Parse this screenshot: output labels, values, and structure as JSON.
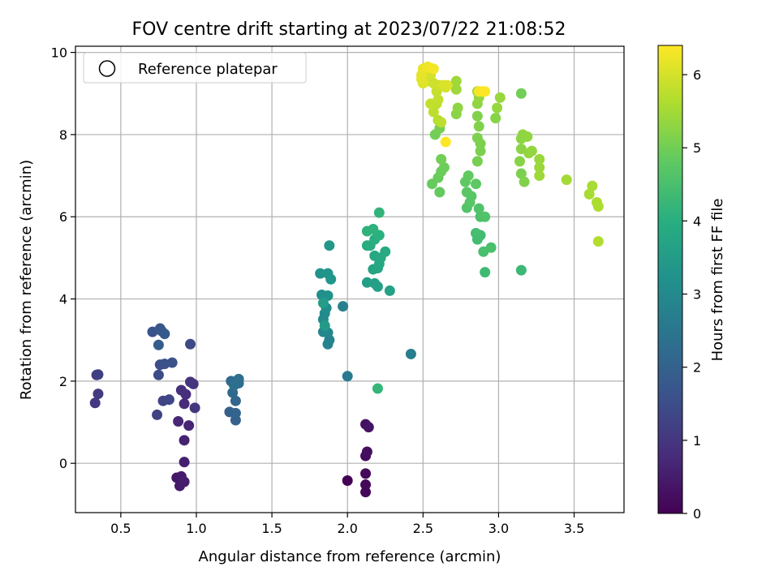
{
  "chart_data": {
    "type": "scatter",
    "title": "FOV centre drift starting at 2023/07/22 21:08:52",
    "xlabel": "Angular distance from reference (arcmin)",
    "ylabel": "Rotation from reference (arcmin)",
    "xlim": [
      0.2,
      3.83
    ],
    "ylim": [
      -1.2,
      10.15
    ],
    "xticks": [
      "0.5",
      "1.0",
      "1.5",
      "2.0",
      "2.5",
      "3.0",
      "3.5"
    ],
    "yticks": [
      "0",
      "2",
      "4",
      "6",
      "8",
      "10"
    ],
    "grid": true,
    "legend": {
      "placement": "top-left",
      "entries": [
        "Reference platepar"
      ]
    },
    "colorbar": {
      "label": "Hours from first FF file",
      "range": [
        0,
        6.4
      ],
      "ticks": [
        "0",
        "1",
        "2",
        "3",
        "4",
        "5",
        "6"
      ],
      "colormap": "viridis"
    },
    "points": [
      [
        2.0,
        -0.42,
        0.0
      ],
      [
        2.12,
        -0.7,
        0.1
      ],
      [
        2.12,
        -0.52,
        0.12
      ],
      [
        2.12,
        -0.25,
        0.15
      ],
      [
        2.12,
        0.18,
        0.2
      ],
      [
        2.13,
        0.28,
        0.25
      ],
      [
        2.12,
        0.95,
        0.3
      ],
      [
        2.14,
        0.88,
        0.35
      ],
      [
        0.87,
        -0.35,
        0.4
      ],
      [
        0.89,
        -0.55,
        0.45
      ],
      [
        0.9,
        -0.32,
        0.45
      ],
      [
        0.92,
        -0.45,
        0.5
      ],
      [
        0.92,
        0.03,
        0.55
      ],
      [
        0.92,
        0.56,
        0.6
      ],
      [
        0.95,
        0.92,
        0.65
      ],
      [
        0.88,
        1.02,
        0.7
      ],
      [
        0.92,
        1.45,
        0.75
      ],
      [
        0.93,
        1.68,
        0.8
      ],
      [
        0.9,
        1.78,
        0.85
      ],
      [
        0.96,
        1.98,
        0.9
      ],
      [
        0.98,
        1.93,
        0.95
      ],
      [
        0.99,
        1.35,
        1.0
      ],
      [
        0.33,
        1.47,
        1.05
      ],
      [
        0.35,
        1.69,
        1.1
      ],
      [
        0.34,
        2.15,
        1.15
      ],
      [
        0.35,
        2.16,
        1.2
      ],
      [
        0.74,
        1.18,
        1.25
      ],
      [
        0.78,
        1.52,
        1.3
      ],
      [
        0.82,
        1.55,
        1.35
      ],
      [
        0.96,
        2.9,
        1.4
      ],
      [
        0.75,
        2.15,
        1.45
      ],
      [
        0.76,
        2.4,
        1.5
      ],
      [
        0.79,
        2.42,
        1.55
      ],
      [
        0.84,
        2.45,
        1.6
      ],
      [
        0.71,
        3.2,
        1.65
      ],
      [
        0.76,
        3.28,
        1.7
      ],
      [
        0.77,
        3.22,
        1.75
      ],
      [
        0.79,
        3.15,
        1.8
      ],
      [
        0.75,
        2.88,
        1.85
      ],
      [
        1.22,
        1.25,
        1.95
      ],
      [
        1.26,
        1.05,
        2.0
      ],
      [
        1.26,
        1.22,
        2.05
      ],
      [
        1.26,
        1.52,
        2.1
      ],
      [
        1.24,
        1.72,
        2.15
      ],
      [
        1.23,
        2.0,
        2.2
      ],
      [
        1.28,
        1.95,
        2.25
      ],
      [
        1.28,
        2.05,
        2.3
      ],
      [
        1.25,
        1.9,
        2.35
      ],
      [
        2.0,
        2.12,
        2.6
      ],
      [
        2.42,
        2.66,
        2.7
      ],
      [
        1.97,
        3.82,
        2.75
      ],
      [
        1.87,
        2.9,
        2.8
      ],
      [
        1.88,
        3.0,
        2.85
      ],
      [
        1.84,
        3.2,
        2.9
      ],
      [
        1.87,
        3.18,
        2.95
      ],
      [
        1.84,
        3.5,
        3.0
      ],
      [
        1.85,
        3.65,
        3.05
      ],
      [
        1.86,
        3.78,
        3.1
      ],
      [
        1.83,
        4.1,
        3.15
      ],
      [
        1.87,
        4.08,
        3.2
      ],
      [
        1.82,
        4.62,
        3.25
      ],
      [
        1.87,
        4.62,
        3.3
      ],
      [
        1.89,
        4.48,
        3.35
      ],
      [
        1.88,
        5.3,
        3.4
      ],
      [
        1.85,
        3.35,
        3.45
      ],
      [
        1.84,
        3.9,
        3.5
      ],
      [
        2.13,
        4.4,
        3.55
      ],
      [
        2.18,
        4.38,
        3.6
      ],
      [
        2.2,
        4.3,
        3.62
      ],
      [
        2.28,
        4.2,
        3.65
      ],
      [
        2.17,
        4.72,
        3.7
      ],
      [
        2.2,
        4.75,
        3.75
      ],
      [
        2.21,
        4.85,
        3.8
      ],
      [
        2.18,
        5.05,
        3.82
      ],
      [
        2.22,
        5.0,
        3.85
      ],
      [
        2.25,
        5.15,
        3.9
      ],
      [
        2.13,
        5.3,
        3.92
      ],
      [
        2.15,
        5.3,
        3.95
      ],
      [
        2.18,
        5.45,
        4.0
      ],
      [
        2.21,
        5.55,
        4.05
      ],
      [
        2.17,
        5.7,
        4.08
      ],
      [
        2.13,
        5.65,
        4.1
      ],
      [
        2.21,
        6.1,
        4.15
      ],
      [
        2.2,
        1.82,
        4.2
      ],
      [
        3.15,
        4.7,
        4.3
      ],
      [
        2.91,
        4.65,
        4.35
      ],
      [
        2.86,
        5.45,
        4.4
      ],
      [
        2.88,
        5.55,
        4.42
      ],
      [
        2.85,
        5.6,
        4.45
      ],
      [
        2.9,
        5.15,
        4.5
      ],
      [
        2.95,
        5.25,
        4.5
      ],
      [
        2.88,
        6.0,
        4.55
      ],
      [
        2.91,
        6.0,
        4.6
      ],
      [
        2.87,
        6.2,
        4.6
      ],
      [
        2.79,
        6.22,
        4.65
      ],
      [
        2.81,
        6.35,
        4.7
      ],
      [
        2.82,
        6.5,
        4.72
      ],
      [
        2.79,
        6.6,
        4.75
      ],
      [
        2.85,
        6.8,
        4.78
      ],
      [
        2.78,
        6.85,
        4.8
      ],
      [
        2.8,
        7.0,
        4.82
      ],
      [
        2.61,
        6.6,
        4.85
      ],
      [
        2.56,
        6.8,
        4.88
      ],
      [
        2.6,
        6.95,
        4.9
      ],
      [
        2.62,
        7.1,
        4.92
      ],
      [
        2.64,
        7.2,
        4.95
      ],
      [
        2.62,
        7.4,
        5.0
      ],
      [
        2.58,
        8.0,
        5.0
      ],
      [
        2.61,
        8.15,
        5.05
      ],
      [
        2.86,
        7.35,
        5.05
      ],
      [
        2.88,
        7.6,
        5.1
      ],
      [
        2.88,
        7.78,
        5.1
      ],
      [
        2.86,
        7.92,
        5.12
      ],
      [
        2.87,
        8.2,
        5.15
      ],
      [
        2.86,
        8.45,
        5.15
      ],
      [
        2.98,
        8.4,
        5.2
      ],
      [
        2.72,
        8.5,
        5.25
      ],
      [
        2.73,
        8.65,
        5.3
      ],
      [
        2.86,
        8.75,
        5.3
      ],
      [
        2.87,
        8.9,
        5.35
      ],
      [
        2.86,
        9.05,
        5.38
      ],
      [
        2.99,
        8.65,
        5.38
      ],
      [
        3.01,
        8.9,
        5.4
      ],
      [
        2.72,
        9.1,
        5.45
      ],
      [
        2.72,
        9.3,
        5.45
      ],
      [
        3.15,
        9.0,
        5.0
      ],
      [
        3.15,
        7.05,
        5.1
      ],
      [
        3.17,
        6.85,
        5.15
      ],
      [
        3.14,
        7.35,
        5.2
      ],
      [
        3.15,
        7.65,
        5.25
      ],
      [
        3.15,
        7.9,
        5.28
      ],
      [
        3.16,
        8.0,
        5.3
      ],
      [
        3.19,
        7.95,
        5.32
      ],
      [
        3.2,
        7.55,
        5.35
      ],
      [
        3.22,
        7.6,
        5.35
      ],
      [
        3.27,
        7.4,
        5.4
      ],
      [
        3.27,
        7.2,
        5.42
      ],
      [
        3.27,
        7.0,
        5.45
      ],
      [
        3.45,
        6.9,
        5.5
      ],
      [
        3.6,
        6.55,
        5.55
      ],
      [
        3.62,
        6.75,
        5.55
      ],
      [
        3.65,
        6.35,
        5.6
      ],
      [
        3.66,
        6.25,
        5.6
      ],
      [
        3.66,
        5.4,
        5.65
      ],
      [
        2.6,
        8.35,
        5.7
      ],
      [
        2.62,
        8.3,
        5.75
      ],
      [
        2.57,
        8.55,
        5.75
      ],
      [
        2.59,
        8.75,
        5.78
      ],
      [
        2.6,
        8.85,
        5.8
      ],
      [
        2.55,
        8.75,
        5.82
      ],
      [
        2.59,
        9.05,
        5.85
      ],
      [
        2.61,
        9.2,
        5.9
      ],
      [
        2.57,
        9.25,
        5.92
      ],
      [
        2.53,
        9.3,
        5.95
      ],
      [
        2.55,
        9.45,
        5.98
      ],
      [
        2.65,
        9.15,
        6.0
      ],
      [
        2.64,
        9.2,
        6.05
      ],
      [
        2.66,
        9.2,
        6.05
      ],
      [
        2.5,
        9.25,
        6.1
      ],
      [
        2.49,
        9.35,
        6.12
      ],
      [
        2.49,
        9.45,
        6.15
      ],
      [
        2.5,
        9.6,
        6.2
      ],
      [
        2.53,
        9.65,
        6.25
      ],
      [
        2.55,
        9.62,
        6.28
      ],
      [
        2.57,
        9.6,
        6.3
      ],
      [
        2.87,
        9.05,
        6.3
      ],
      [
        2.89,
        9.05,
        6.35
      ],
      [
        2.91,
        9.05,
        6.4
      ],
      [
        2.65,
        7.82,
        6.4
      ]
    ]
  }
}
